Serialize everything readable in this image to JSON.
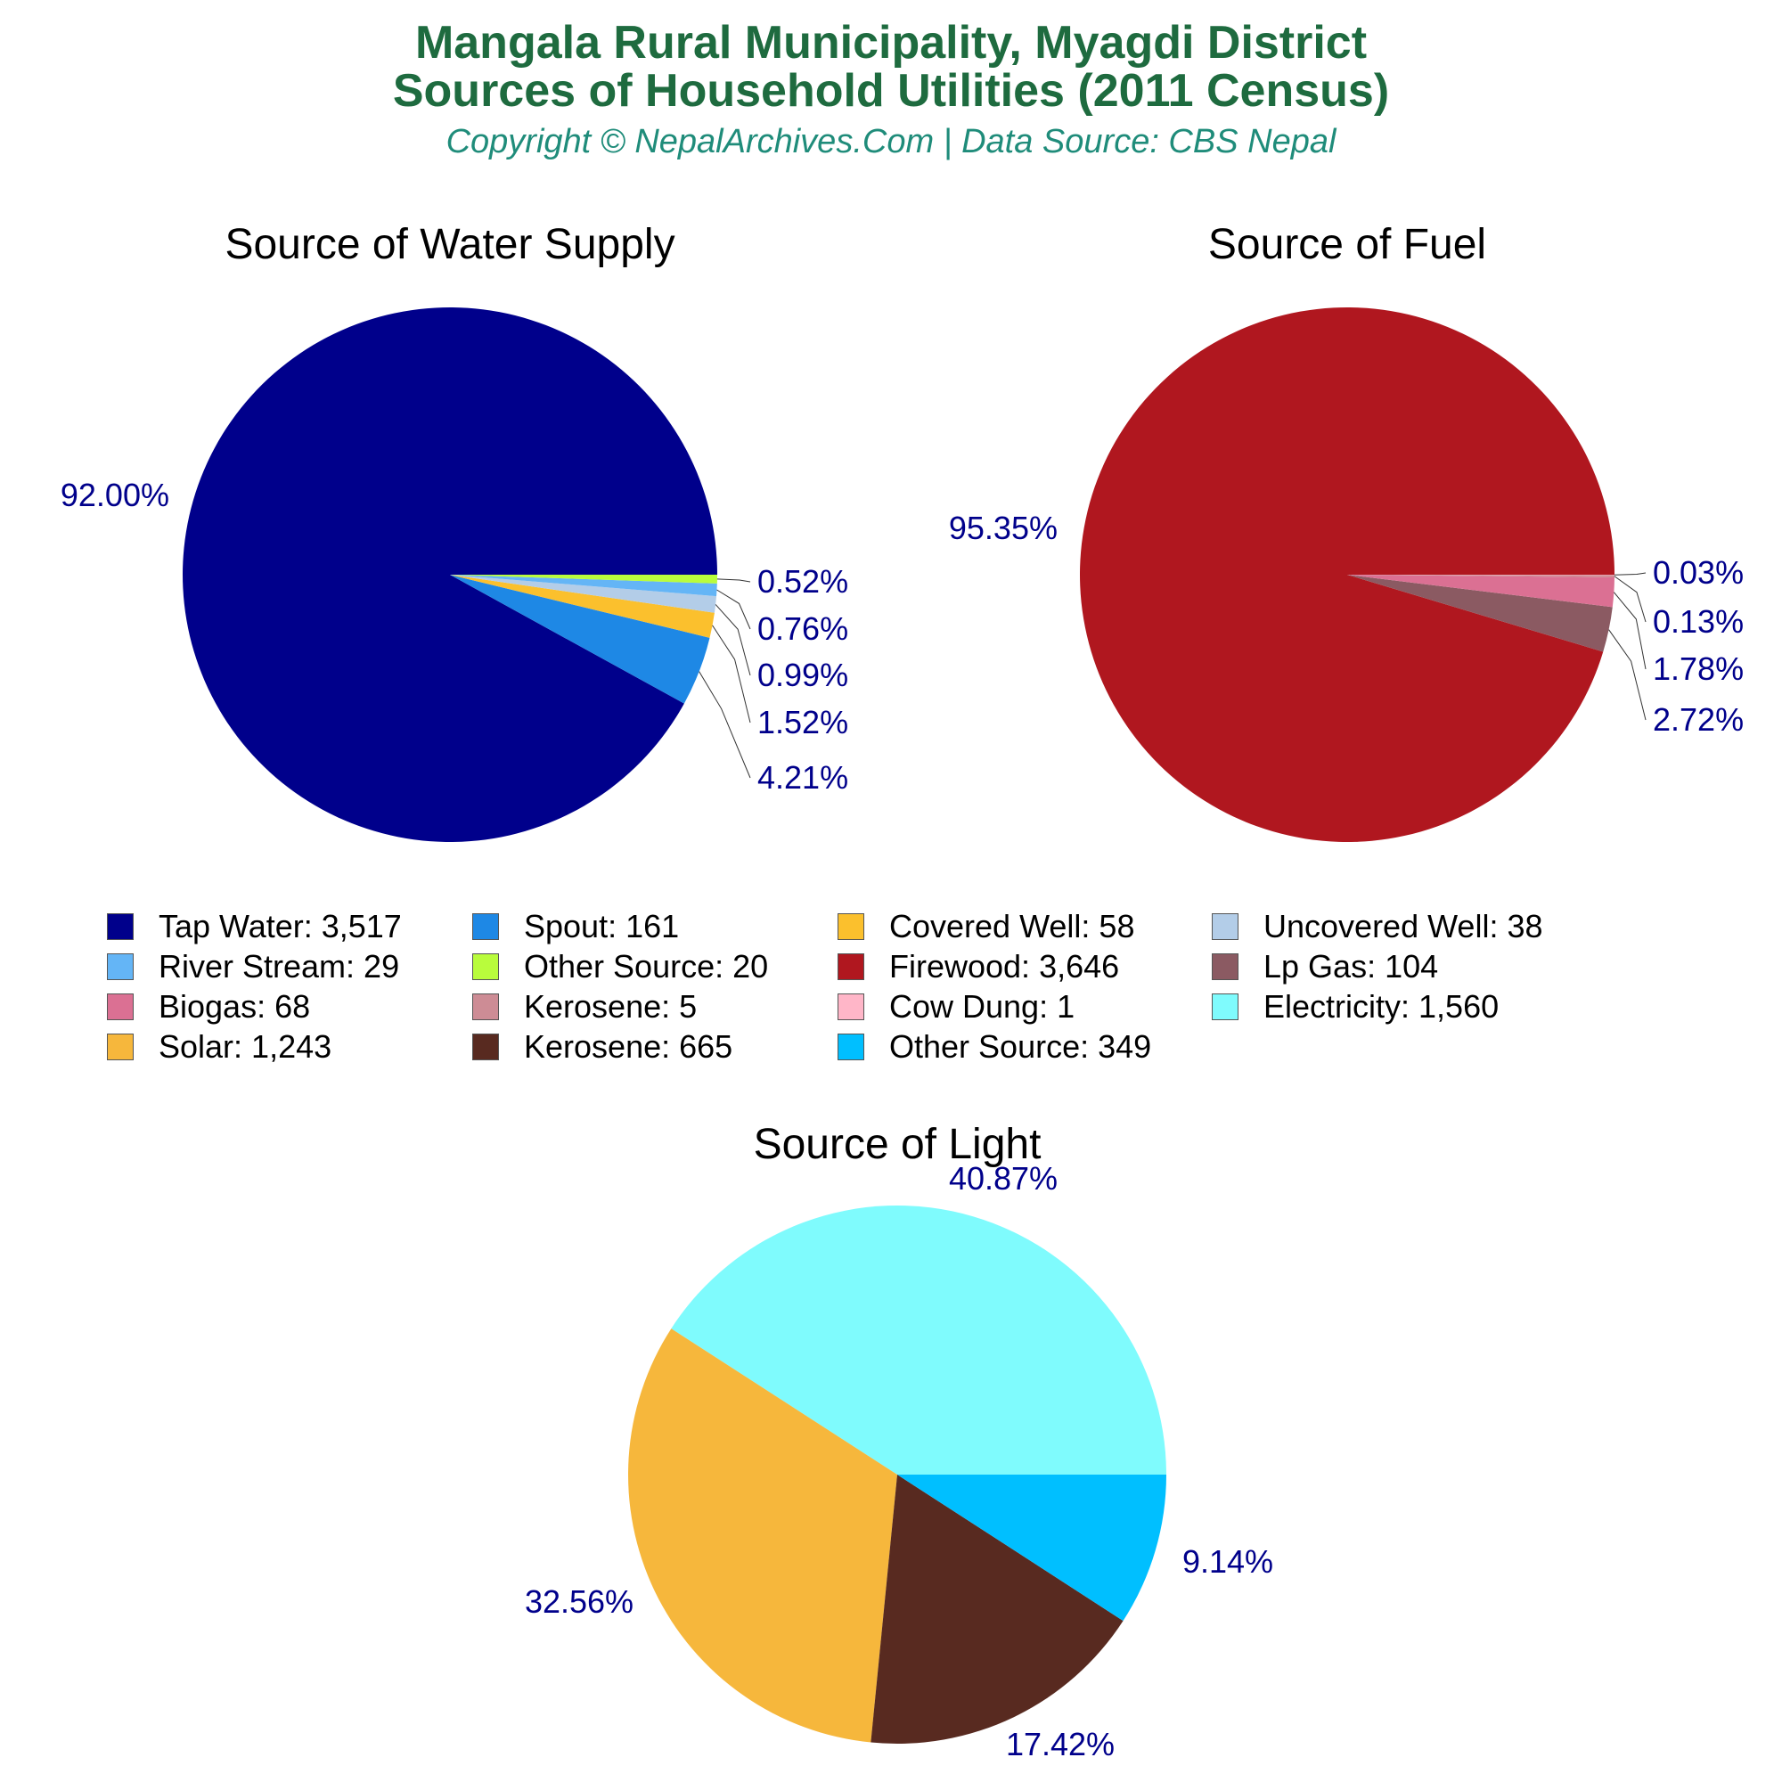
{
  "header": {
    "title_line1": "Mangala Rural Municipality, Myagdi District",
    "title_line2": "Sources of Household Utilities (2011 Census)",
    "subtitle": "Copyright © NepalArchives.Com | Data Source: CBS Nepal"
  },
  "legend": [
    {
      "label": "Tap Water: 3,517",
      "color": "#00008b"
    },
    {
      "label": "Spout: 161",
      "color": "#1e88e5"
    },
    {
      "label": "Covered Well: 58",
      "color": "#fbc02d"
    },
    {
      "label": "Uncovered Well: 38",
      "color": "#b3cde8"
    },
    {
      "label": "River Stream: 29",
      "color": "#64b5f6"
    },
    {
      "label": "Other Source: 20",
      "color": "#b9fc3c"
    },
    {
      "label": "Firewood: 3,646",
      "color": "#b0171f"
    },
    {
      "label": "Lp Gas: 104",
      "color": "#8b5a62"
    },
    {
      "label": "Biogas: 68",
      "color": "#db7093"
    },
    {
      "label": "Kerosene: 5",
      "color": "#cd8c95"
    },
    {
      "label": "Cow Dung: 1",
      "color": "#ffb6c8"
    },
    {
      "label": "Electricity: 1,560",
      "color": "#7ffbfd"
    },
    {
      "label": "Solar: 1,243",
      "color": "#f6b73c"
    },
    {
      "label": "Kerosene: 665",
      "color": "#582a20"
    },
    {
      "label": "Other Source: 349",
      "color": "#00bfff"
    }
  ],
  "chart_data": [
    {
      "type": "pie",
      "title": "Source of Water Supply",
      "label_color": "#00008b",
      "slices": [
        {
          "name": "Tap Water",
          "value": 3517,
          "pct_label": "92.00%",
          "color": "#00008b"
        },
        {
          "name": "Spout",
          "value": 161,
          "pct_label": "4.21%",
          "color": "#1e88e5"
        },
        {
          "name": "Covered Well",
          "value": 58,
          "pct_label": "1.52%",
          "color": "#fbc02d"
        },
        {
          "name": "Uncovered Well",
          "value": 38,
          "pct_label": "0.99%",
          "color": "#b3cde8"
        },
        {
          "name": "River Stream",
          "value": 29,
          "pct_label": "0.76%",
          "color": "#64b5f6"
        },
        {
          "name": "Other Source",
          "value": 20,
          "pct_label": "0.52%",
          "color": "#b9fc3c"
        }
      ]
    },
    {
      "type": "pie",
      "title": "Source of Fuel",
      "label_color": "#00008b",
      "slices": [
        {
          "name": "Firewood",
          "value": 3646,
          "pct_label": "95.35%",
          "color": "#b0171f"
        },
        {
          "name": "Lp Gas",
          "value": 104,
          "pct_label": "2.72%",
          "color": "#8b5a62"
        },
        {
          "name": "Biogas",
          "value": 68,
          "pct_label": "1.78%",
          "color": "#db7093"
        },
        {
          "name": "Kerosene",
          "value": 5,
          "pct_label": "0.13%",
          "color": "#cd8c95"
        },
        {
          "name": "Cow Dung",
          "value": 1,
          "pct_label": "0.03%",
          "color": "#ffb6c8"
        }
      ]
    },
    {
      "type": "pie",
      "title": "Source of Light",
      "label_color": "#00008b",
      "slices": [
        {
          "name": "Electricity",
          "value": 1560,
          "pct_label": "40.87%",
          "color": "#7ffbfd"
        },
        {
          "name": "Solar",
          "value": 1243,
          "pct_label": "32.56%",
          "color": "#f6b73c"
        },
        {
          "name": "Kerosene",
          "value": 665,
          "pct_label": "17.42%",
          "color": "#582a20"
        },
        {
          "name": "Other Source",
          "value": 349,
          "pct_label": "9.14%",
          "color": "#00bfff"
        }
      ]
    }
  ]
}
